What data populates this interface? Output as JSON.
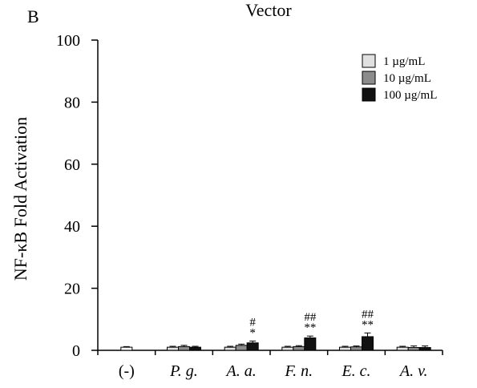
{
  "panel_label": "B",
  "chart_data": {
    "type": "bar",
    "title": "Vector",
    "xlabel": "",
    "ylabel": "NF-κB Fold Activation",
    "ylim": [
      0,
      100
    ],
    "yticks": [
      0,
      20,
      40,
      60,
      80,
      100
    ],
    "categories": [
      "(-)",
      "P. g.",
      "A. a.",
      "F. n.",
      "E. c.",
      "A. v."
    ],
    "category_italic": [
      false,
      true,
      true,
      true,
      true,
      true
    ],
    "series": [
      {
        "name": "1 µg/mL",
        "color": "#e0e0e0",
        "values": [
          null,
          1.0,
          1.0,
          1.0,
          1.0,
          1.0
        ],
        "errors": [
          null,
          0.3,
          0.3,
          0.3,
          0.3,
          0.3
        ]
      },
      {
        "name": "10 µg/mL",
        "color": "#8c8c8c",
        "values": [
          null,
          1.2,
          1.6,
          1.2,
          1.1,
          0.9
        ],
        "errors": [
          null,
          0.4,
          0.4,
          0.3,
          0.3,
          0.5
        ]
      },
      {
        "name": "100 µg/mL",
        "color": "#111111",
        "values": [
          null,
          1.0,
          2.4,
          4.0,
          4.4,
          0.9
        ],
        "errors": [
          null,
          0.3,
          0.6,
          0.6,
          1.2,
          0.5
        ]
      }
    ],
    "control": {
      "category": "(-)",
      "value": 1.0,
      "error": 0.2,
      "color": "#ffffff"
    },
    "annotations": [
      {
        "category": "A. a.",
        "lines": [
          "#",
          "*"
        ]
      },
      {
        "category": "F. n.",
        "lines": [
          "##",
          "**"
        ]
      },
      {
        "category": "E. c.",
        "lines": [
          "##",
          "**"
        ]
      }
    ],
    "legend_position": "top-right",
    "grid": false
  }
}
